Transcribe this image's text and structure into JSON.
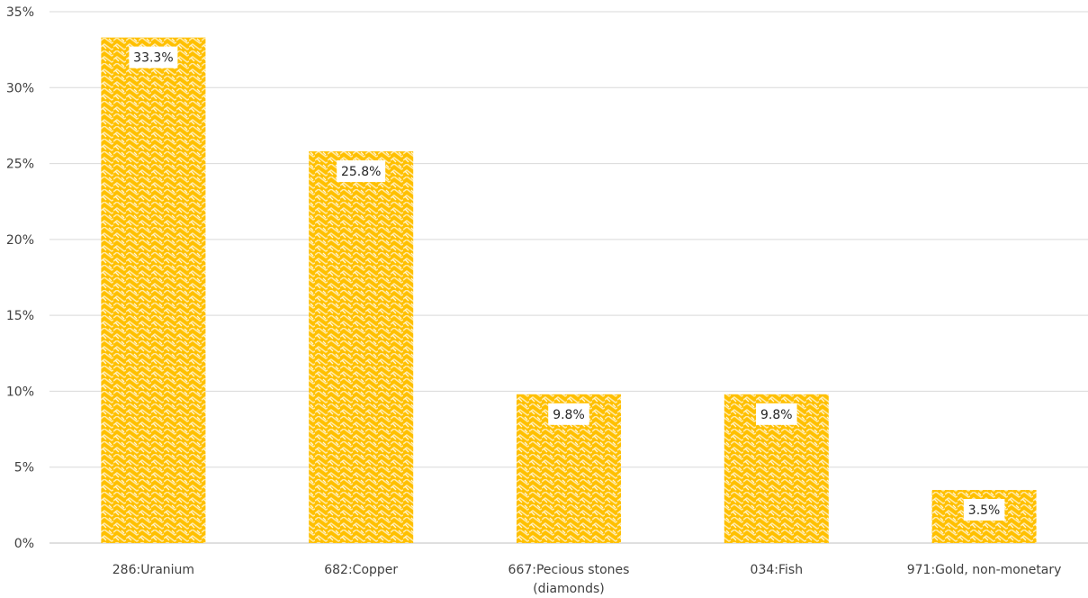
{
  "chart_data": {
    "type": "bar",
    "title": "",
    "xlabel": "",
    "ylabel": "",
    "categories": [
      [
        "286:Uranium"
      ],
      [
        "682:Copper"
      ],
      [
        "667:Pecious stones",
        "(diamonds)"
      ],
      [
        "034:Fish"
      ],
      [
        "971:Gold, non-monetary"
      ]
    ],
    "values": [
      33.3,
      25.8,
      9.8,
      9.8,
      3.5
    ],
    "data_labels": [
      "33.3%",
      "25.8%",
      "9.8%",
      "9.8%",
      "3.5%"
    ],
    "yticks": [
      "0%",
      "5%",
      "10%",
      "15%",
      "20%",
      "25%",
      "30%",
      "35%"
    ],
    "ylim": [
      0,
      35
    ],
    "grid": true,
    "legend": "none",
    "colors": {
      "bar": "#FFC000",
      "pattern": "#FFFFFF",
      "grid": "#D9D9D9",
      "label_bg": "#FFFFFF"
    }
  }
}
